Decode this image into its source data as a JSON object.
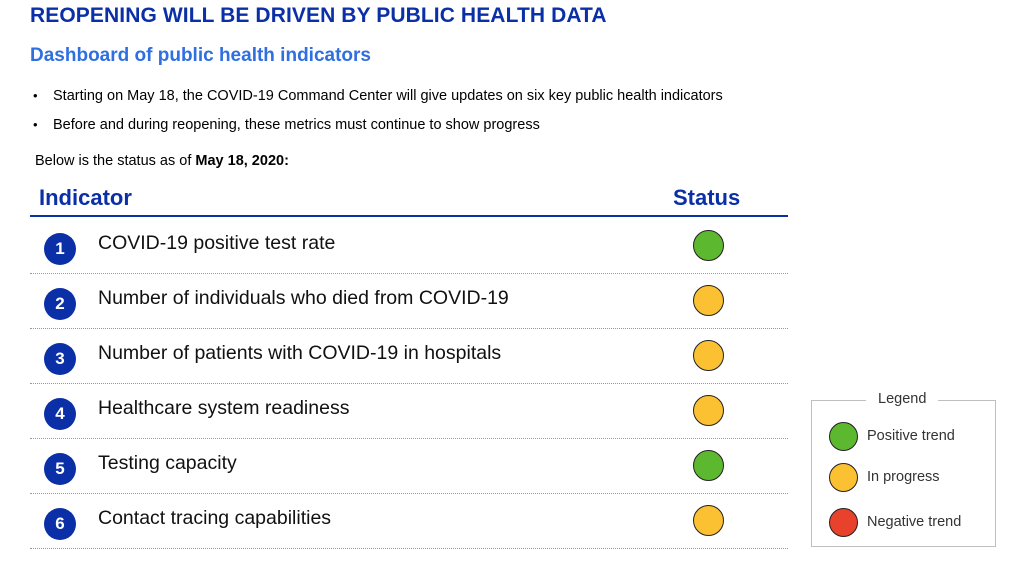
{
  "title": "REOPENING WILL BE DRIVEN BY PUBLIC HEALTH DATA",
  "subtitle": "Dashboard of public health indicators",
  "bullets": [
    "Starting on May 18, the COVID-19 Command Center will give updates on six key public health indicators",
    "Before and during reopening, these metrics must continue to show progress"
  ],
  "status_prefix": "Below is the status as of ",
  "status_date": "May 18, 2020:",
  "table": {
    "col_indicator": "Indicator",
    "col_status": "Status",
    "rows": [
      {
        "num": "1",
        "label": "COVID-19 positive test rate",
        "status": "Positive trend"
      },
      {
        "num": "2",
        "label": "Number of individuals who died from COVID-19",
        "status": "In progress"
      },
      {
        "num": "3",
        "label": "Number of patients with COVID-19 in hospitals",
        "status": "In progress"
      },
      {
        "num": "4",
        "label": "Healthcare system readiness",
        "status": "In progress"
      },
      {
        "num": "5",
        "label": "Testing capacity",
        "status": "Positive trend"
      },
      {
        "num": "6",
        "label": "Contact tracing capabilities",
        "status": "In progress"
      }
    ]
  },
  "legend": {
    "title": "Legend",
    "items": [
      {
        "label": "Positive trend",
        "color": "#5cb82e"
      },
      {
        "label": "In progress",
        "color": "#fbc132"
      },
      {
        "label": "Negative trend",
        "color": "#e8412c"
      }
    ]
  },
  "colors": {
    "title": "#0a2fa6",
    "subtitle": "#2f6fe0",
    "positive": "#5cb82e",
    "progress": "#fbc132",
    "negative": "#e8412c"
  }
}
